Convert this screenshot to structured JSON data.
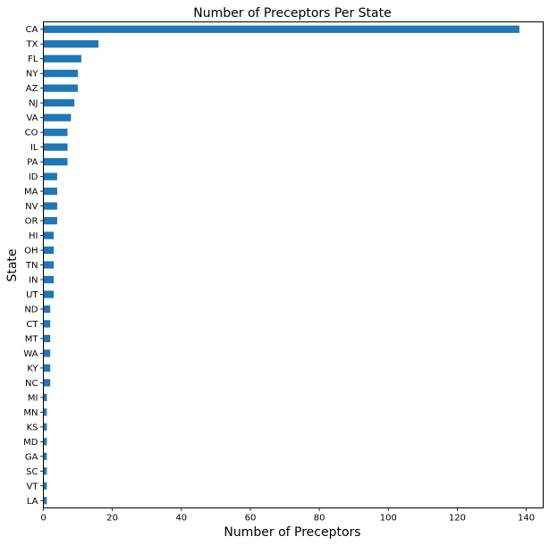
{
  "chart_data": {
    "type": "bar",
    "orientation": "horizontal",
    "title": "Number of Preceptors Per State",
    "xlabel": "Number of Preceptors",
    "ylabel": "State",
    "xlim": [
      0,
      144.9
    ],
    "xticks": [
      0,
      20,
      40,
      60,
      80,
      100,
      120,
      140
    ],
    "grid": false,
    "legend": "none",
    "bar_color": "#1f77b4",
    "categories": [
      "CA",
      "TX",
      "FL",
      "NY",
      "AZ",
      "NJ",
      "VA",
      "CO",
      "IL",
      "PA",
      "ID",
      "MA",
      "NV",
      "OR",
      "HI",
      "OH",
      "TN",
      "IN",
      "UT",
      "ND",
      "CT",
      "MT",
      "WA",
      "KY",
      "NC",
      "MI",
      "MN",
      "KS",
      "MD",
      "GA",
      "SC",
      "VT",
      "LA"
    ],
    "values": [
      138,
      16,
      11,
      10,
      10,
      9,
      8,
      7,
      7,
      7,
      4,
      4,
      4,
      4,
      3,
      3,
      3,
      3,
      3,
      2,
      2,
      2,
      2,
      2,
      2,
      1,
      1,
      1,
      1,
      1,
      1,
      1,
      1
    ]
  }
}
